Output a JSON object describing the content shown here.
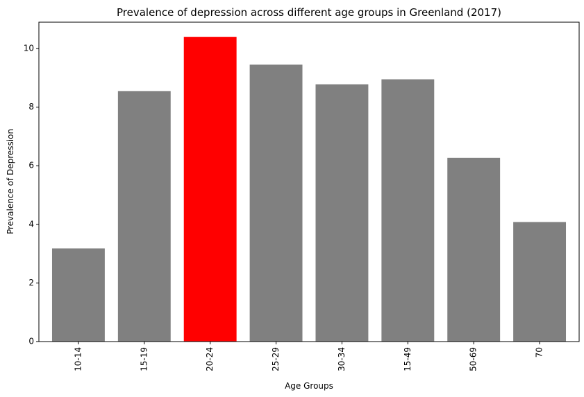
{
  "chart_data": {
    "type": "bar",
    "title": "Prevalence of depression across different age groups in Greenland (2017)",
    "xlabel": "Age Groups",
    "ylabel": "Prevalence of Depression",
    "categories": [
      "10-14",
      "15-19",
      "20-24",
      "25-29",
      "30-34",
      "15-49",
      "50-69",
      "70"
    ],
    "values": [
      3.18,
      8.55,
      10.4,
      9.45,
      8.78,
      8.95,
      6.27,
      4.08
    ],
    "ylim": [
      0,
      10.9
    ],
    "yticks": [
      0,
      2,
      4,
      6,
      8,
      10
    ],
    "grid": false,
    "legend": "none",
    "colors": {
      "default": "#808080",
      "highlight": "#ff0000"
    },
    "highlight_index": 2
  }
}
